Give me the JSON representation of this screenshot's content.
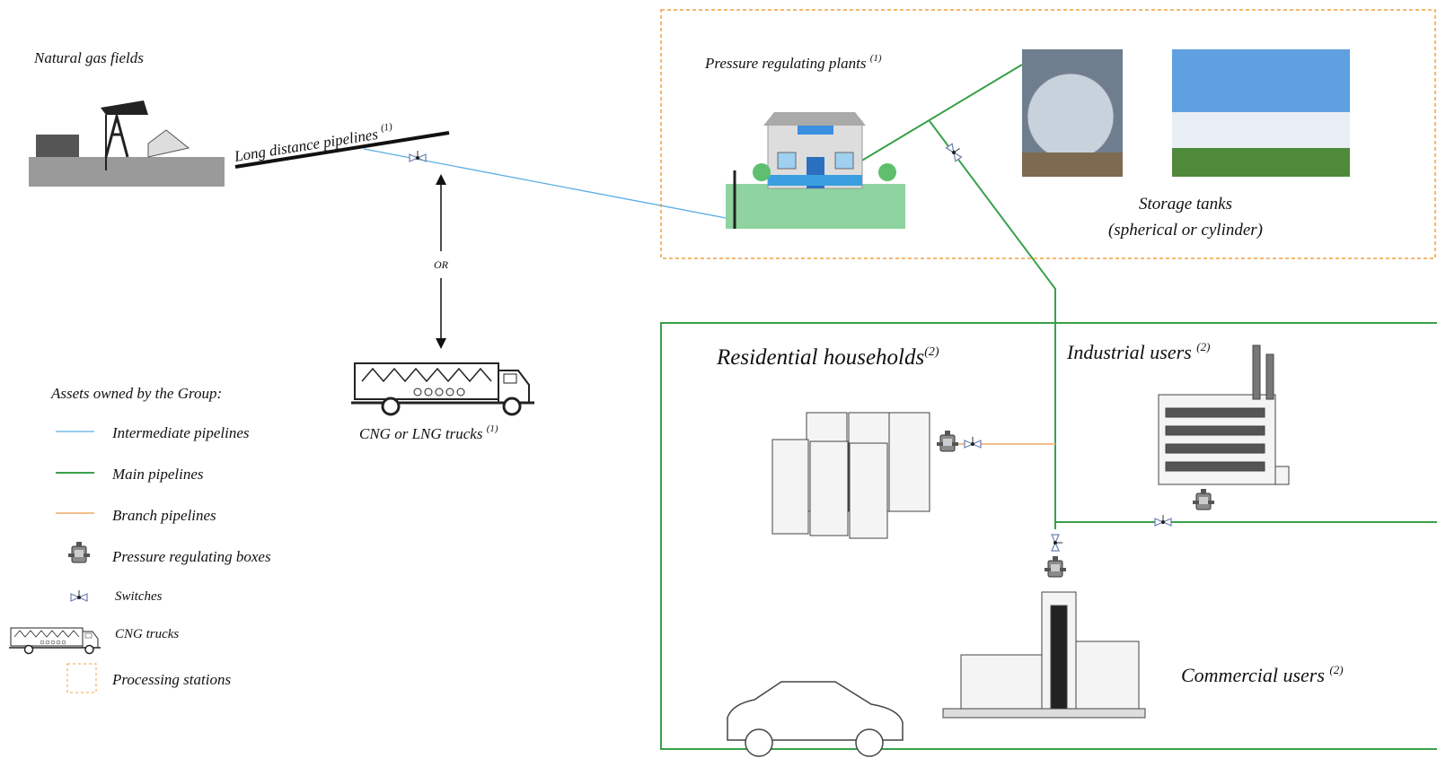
{
  "source": {
    "label": "Natural gas fields"
  },
  "long_distance": {
    "label": "Long distance pipelines",
    "note": "(1)"
  },
  "alternative": {
    "label": "OR"
  },
  "trucks": {
    "label": "CNG or LNG trucks",
    "note": "(1)"
  },
  "plants": {
    "label": "Pressure regulating plants",
    "note": "(1)"
  },
  "storage": {
    "label": "Storage tanks",
    "sublabel": "(spherical or cylinder)"
  },
  "residential": {
    "label": "Residential households",
    "note": "(2)"
  },
  "industrial": {
    "label": "Industrial users",
    "note": "(2)"
  },
  "commercial": {
    "label": "Commercial users",
    "note": "(2)"
  },
  "legend": {
    "title": "Assets owned by the Group:",
    "items": [
      "Intermediate pipelines",
      "Main pipelines",
      "Branch pipelines",
      "Pressure regulating boxes",
      "Switches",
      "CNG trucks",
      "Processing stations"
    ]
  }
}
